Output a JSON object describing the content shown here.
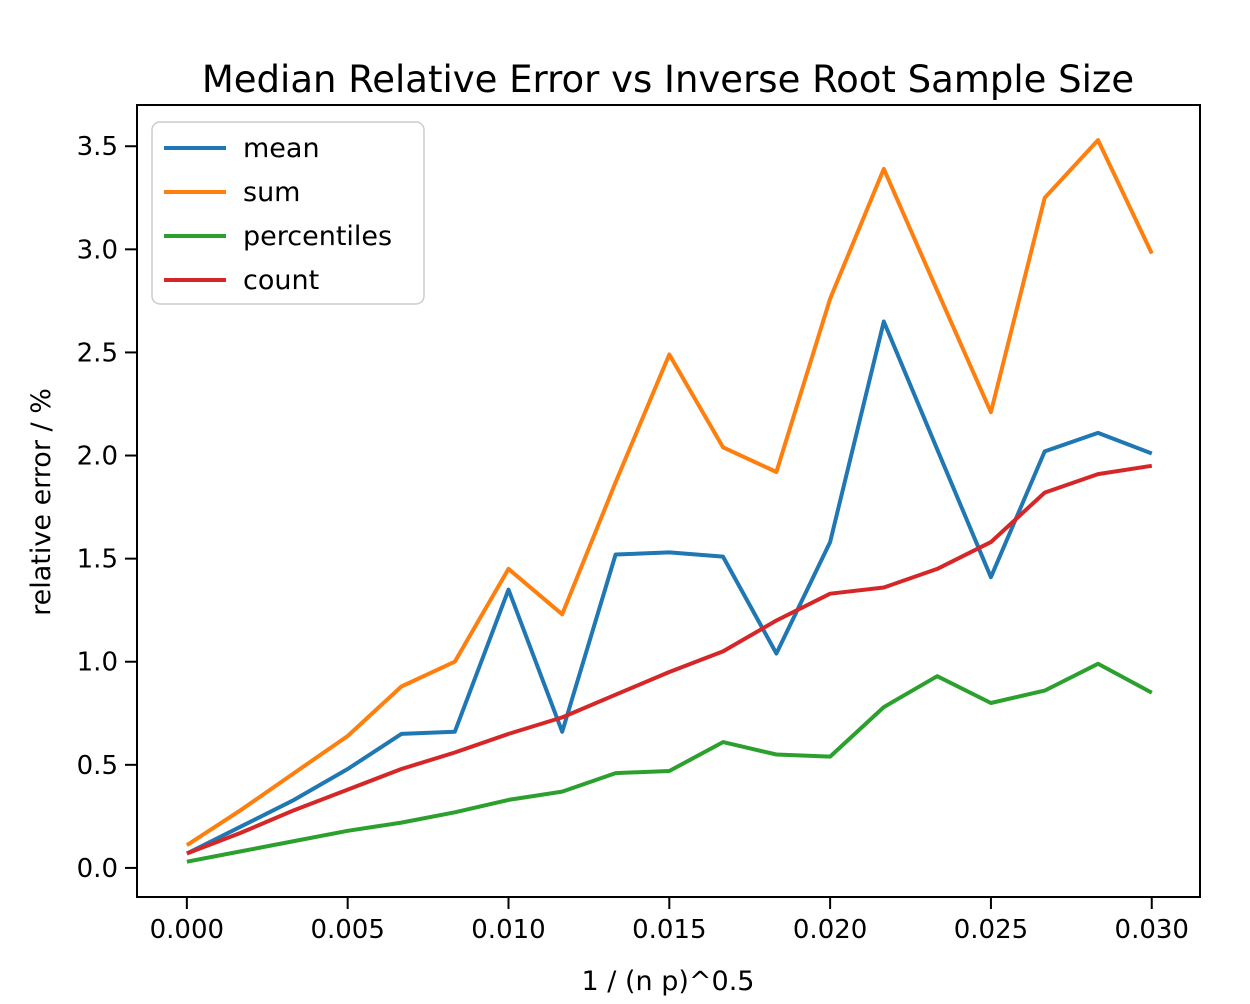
{
  "figure": {
    "background": "#ffffff",
    "text_color": "#000000",
    "spine_color": "#000000",
    "legend_border_color": "#cccccc"
  },
  "chart_data": {
    "type": "line",
    "title": "Median Relative Error vs Inverse Root Sample Size",
    "xlabel": "1 / (n p)^0.5",
    "ylabel": "relative error / %",
    "legend_position": "upper left",
    "grid": false,
    "xlim": [
      -0.00155,
      0.0315
    ],
    "ylim": [
      -0.141,
      3.7
    ],
    "x": [
      0.0,
      0.00167,
      0.00333,
      0.005,
      0.00667,
      0.00833,
      0.01,
      0.01167,
      0.01333,
      0.015,
      0.01667,
      0.01833,
      0.02,
      0.02167,
      0.02333,
      0.025,
      0.02667,
      0.02833,
      0.03
    ],
    "series": [
      {
        "name": "mean",
        "color": "#1f77b4",
        "values": [
          0.07,
          0.2,
          0.33,
          0.48,
          0.65,
          0.66,
          1.35,
          0.66,
          1.52,
          1.53,
          1.51,
          1.04,
          1.58,
          2.65,
          2.03,
          1.41,
          2.02,
          2.11,
          2.01
        ]
      },
      {
        "name": "sum",
        "color": "#ff7f0e",
        "values": [
          0.11,
          0.28,
          0.46,
          0.64,
          0.88,
          1.0,
          1.45,
          1.23,
          1.87,
          2.49,
          2.04,
          1.92,
          2.76,
          3.39,
          2.8,
          2.21,
          3.25,
          3.53,
          2.98
        ]
      },
      {
        "name": "percentiles",
        "color": "#2ca02c",
        "values": [
          0.03,
          0.08,
          0.13,
          0.18,
          0.22,
          0.27,
          0.33,
          0.37,
          0.46,
          0.47,
          0.61,
          0.55,
          0.54,
          0.78,
          0.93,
          0.8,
          0.86,
          0.99,
          0.85
        ]
      },
      {
        "name": "count",
        "color": "#d62728",
        "values": [
          0.07,
          0.17,
          0.28,
          0.38,
          0.48,
          0.56,
          0.65,
          0.73,
          0.84,
          0.95,
          1.05,
          1.2,
          1.33,
          1.36,
          1.45,
          1.58,
          1.82,
          1.91,
          1.95
        ]
      }
    ],
    "xticks": {
      "values": [
        0.0,
        0.005,
        0.01,
        0.015,
        0.02,
        0.025,
        0.03
      ],
      "labels": [
        "0.000",
        "0.005",
        "0.010",
        "0.015",
        "0.020",
        "0.025",
        "0.030"
      ]
    },
    "yticks": {
      "values": [
        0.0,
        0.5,
        1.0,
        1.5,
        2.0,
        2.5,
        3.0,
        3.5
      ],
      "labels": [
        "0.0",
        "0.5",
        "1.0",
        "1.5",
        "2.0",
        "2.5",
        "3.0",
        "3.5"
      ]
    }
  }
}
